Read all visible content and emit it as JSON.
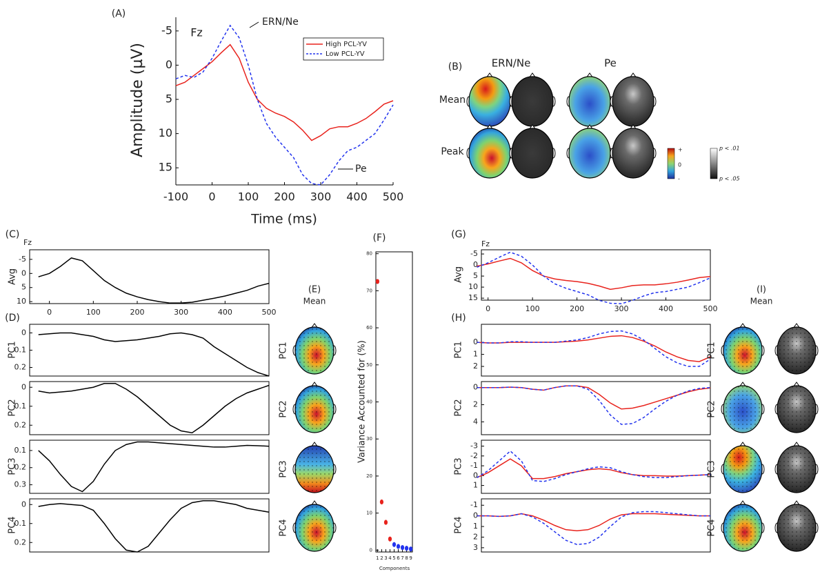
{
  "chart_data": [
    {
      "type": "line",
      "label": "(A)",
      "ylabel": "Amplitude (µV)",
      "xlabel": "Time (ms)",
      "annotations": [
        "Fz",
        "ERN/Ne",
        "Pe"
      ],
      "x": [
        -100,
        -75,
        -50,
        -25,
        0,
        25,
        50,
        75,
        100,
        125,
        150,
        175,
        200,
        225,
        250,
        275,
        300,
        325,
        350,
        375,
        400,
        425,
        450,
        475,
        500
      ],
      "series": [
        {
          "name": "High PCL-YV",
          "color": "#e8221c",
          "dash": false,
          "values": [
            3,
            2.5,
            1.5,
            0.5,
            -0.5,
            -1.8,
            -3,
            -1,
            2.5,
            5,
            6.3,
            7,
            7.5,
            8.3,
            9.5,
            11,
            10.3,
            9.3,
            9,
            9,
            8.5,
            7.8,
            6.8,
            5.7,
            5.2
          ]
        },
        {
          "name": "Low PCL-YV",
          "color": "#2233ee",
          "dash": true,
          "values": [
            2,
            1.5,
            1.8,
            1,
            -1,
            -3.5,
            -5.8,
            -4,
            0,
            5,
            8.5,
            10.5,
            12,
            13.5,
            16,
            17.3,
            17.5,
            16,
            14,
            12.5,
            12,
            11,
            10,
            8,
            5.8
          ]
        }
      ],
      "xlim": [
        -100,
        500
      ],
      "ylim": [
        -7,
        17.5
      ],
      "y_inverted": true,
      "xticks": [
        -100,
        0,
        100,
        200,
        300,
        400,
        500
      ],
      "yticks": [
        -5,
        0,
        5,
        10,
        15
      ],
      "legend": "upper right"
    },
    {
      "type": "topomap",
      "label": "(B)",
      "column_titles": [
        "ERN/Ne",
        "Pe"
      ],
      "row_titles": [
        "Mean",
        "Peak"
      ],
      "colorbar_labels": [
        "+",
        "0",
        "-"
      ],
      "p_labels": [
        "p < .01",
        "p < .05"
      ]
    },
    {
      "type": "line",
      "label": "(C)",
      "ylabel": "Avg",
      "annotations": [
        "Fz"
      ],
      "x": [
        -25,
        0,
        25,
        50,
        75,
        100,
        125,
        150,
        175,
        200,
        225,
        250,
        275,
        300,
        325,
        350,
        375,
        400,
        425,
        450,
        475,
        500
      ],
      "series": [
        {
          "color": "#000000",
          "values": [
            1.2,
            0,
            -2.5,
            -5.5,
            -4.5,
            -1,
            2.5,
            5,
            7,
            8.3,
            9.3,
            10,
            10.5,
            10.5,
            10.2,
            9.5,
            8.8,
            8,
            7,
            6,
            4.5,
            3.5
          ]
        }
      ],
      "xlim": [
        -45,
        500
      ],
      "ylim": [
        -8.4,
        10.7
      ],
      "y_inverted": true,
      "xticks": [
        0,
        100,
        200,
        300,
        400,
        500
      ],
      "yticks": [
        -5,
        0,
        5,
        10
      ]
    },
    {
      "type": "line",
      "label": "(D)",
      "ylabel": "PC1",
      "x": [
        -25,
        0,
        25,
        50,
        75,
        100,
        125,
        150,
        175,
        200,
        225,
        250,
        275,
        300,
        325,
        350,
        375,
        400,
        425,
        450,
        475,
        500
      ],
      "series": [
        {
          "color": "#000000",
          "values": [
            0.01,
            0.005,
            0,
            0,
            0.01,
            0.02,
            0.04,
            0.05,
            0.045,
            0.04,
            0.03,
            0.02,
            0.005,
            0,
            0.01,
            0.03,
            0.08,
            0.12,
            0.16,
            0.2,
            0.23,
            0.25
          ]
        }
      ],
      "xlim": [
        -45,
        500
      ],
      "ylim": [
        -0.05,
        0.25
      ],
      "y_inverted": true,
      "yticks": [
        0,
        0.1,
        0.2
      ]
    },
    {
      "type": "line",
      "ylabel": "PC2",
      "x": [
        -25,
        0,
        25,
        50,
        75,
        100,
        125,
        150,
        175,
        200,
        225,
        250,
        275,
        300,
        325,
        350,
        375,
        400,
        425,
        450,
        475,
        500
      ],
      "series": [
        {
          "color": "#000000",
          "values": [
            0.02,
            0.03,
            0.025,
            0.02,
            0.01,
            0,
            -0.02,
            -0.02,
            0.01,
            0.05,
            0.1,
            0.15,
            0.2,
            0.23,
            0.24,
            0.2,
            0.15,
            0.1,
            0.06,
            0.03,
            0.01,
            -0.01
          ]
        }
      ],
      "xlim": [
        -45,
        500
      ],
      "ylim": [
        -0.03,
        0.25
      ],
      "y_inverted": true,
      "yticks": [
        0,
        0.1,
        0.2
      ]
    },
    {
      "type": "line",
      "ylabel": "PC3",
      "x": [
        -25,
        0,
        25,
        50,
        75,
        100,
        125,
        150,
        175,
        200,
        225,
        250,
        275,
        300,
        325,
        350,
        375,
        400,
        425,
        450,
        475,
        500
      ],
      "series": [
        {
          "color": "#000000",
          "values": [
            0.1,
            0.16,
            0.24,
            0.31,
            0.34,
            0.28,
            0.18,
            0.1,
            0.065,
            0.05,
            0.05,
            0.055,
            0.06,
            0.065,
            0.07,
            0.075,
            0.08,
            0.08,
            0.075,
            0.07,
            0.072,
            0.075
          ]
        }
      ],
      "xlim": [
        -45,
        500
      ],
      "ylim": [
        0.04,
        0.35
      ],
      "y_inverted": true,
      "yticks": [
        0.1,
        0.2,
        0.3
      ]
    },
    {
      "type": "line",
      "ylabel": "PC4",
      "x": [
        -25,
        0,
        25,
        50,
        75,
        100,
        125,
        150,
        175,
        200,
        225,
        250,
        275,
        300,
        325,
        350,
        375,
        400,
        425,
        450,
        475,
        500
      ],
      "series": [
        {
          "color": "#000000",
          "values": [
            0.01,
            0,
            -0.005,
            0,
            0.005,
            0.03,
            0.1,
            0.18,
            0.24,
            0.25,
            0.22,
            0.15,
            0.08,
            0.02,
            -0.01,
            -0.02,
            -0.02,
            -0.01,
            0,
            0.02,
            0.03,
            0.04
          ]
        }
      ],
      "xlim": [
        -45,
        500
      ],
      "ylim": [
        -0.03,
        0.25
      ],
      "y_inverted": true,
      "yticks": [
        0,
        0.1,
        0.2
      ]
    },
    {
      "type": "topomap",
      "label": "(E)",
      "subtitle": "Mean",
      "row_titles": [
        "PC1",
        "PC2",
        "PC3",
        "PC4"
      ]
    },
    {
      "type": "scatter",
      "label": "(F)",
      "ylabel": "Variance Accounted for (%)",
      "xlabel": "Components",
      "x": [
        1,
        2,
        3,
        4,
        5,
        6,
        7,
        8,
        9
      ],
      "values": [
        72.5,
        13,
        7.5,
        3,
        1.5,
        1,
        0.7,
        0.5,
        0.3
      ],
      "colors": [
        "#e8221c",
        "#e8221c",
        "#e8221c",
        "#e8221c",
        "#2233ee",
        "#2233ee",
        "#2233ee",
        "#2233ee",
        "#2233ee"
      ],
      "xlim": [
        0.6,
        9.4
      ],
      "ylim": [
        -0.5,
        80.5
      ],
      "xticks": [
        1,
        2,
        3,
        4,
        5,
        6,
        7,
        8,
        9
      ],
      "yticks": [
        0,
        10,
        20,
        30,
        40,
        50,
        60,
        70,
        80
      ]
    },
    {
      "type": "line",
      "label": "(G)",
      "ylabel": "Avg",
      "annotations": [
        "Fz"
      ],
      "x": [
        -25,
        0,
        25,
        50,
        75,
        100,
        125,
        150,
        175,
        200,
        225,
        250,
        275,
        300,
        325,
        350,
        375,
        400,
        425,
        450,
        475,
        500
      ],
      "series": [
        {
          "color": "#e8221c",
          "dash": false,
          "values": [
            0.5,
            -0.5,
            -1.8,
            -3,
            -1,
            2.5,
            5,
            6.3,
            7,
            7.5,
            8.3,
            9.5,
            11,
            10.3,
            9.3,
            9,
            9,
            8.5,
            7.8,
            6.8,
            5.7,
            5.2
          ]
        },
        {
          "color": "#2233ee",
          "dash": true,
          "values": [
            1,
            -1,
            -3.5,
            -5.8,
            -4,
            0,
            5,
            8.5,
            10.5,
            12,
            13.5,
            16,
            17.3,
            17.5,
            16,
            14,
            12.5,
            12,
            11,
            10,
            8,
            5.8
          ]
        }
      ],
      "xlim": [
        -15,
        500
      ],
      "ylim": [
        -6.9,
        15.9
      ],
      "y_inverted": true,
      "xticks": [
        0,
        100,
        200,
        300,
        400,
        500
      ],
      "yticks": [
        -5,
        0,
        5,
        10,
        15
      ]
    },
    {
      "type": "line",
      "label": "(H)",
      "ylabel": "PC1",
      "x": [
        -25,
        0,
        25,
        50,
        75,
        100,
        125,
        150,
        175,
        200,
        225,
        250,
        275,
        300,
        325,
        350,
        375,
        400,
        425,
        450,
        475,
        500
      ],
      "series": [
        {
          "color": "#e8221c",
          "dash": false,
          "values": [
            0,
            0.05,
            0.05,
            0,
            0,
            0,
            0,
            0,
            -0.05,
            -0.1,
            -0.2,
            -0.35,
            -0.5,
            -0.55,
            -0.4,
            -0.1,
            0.3,
            0.8,
            1.2,
            1.5,
            1.6,
            1.2
          ]
        },
        {
          "color": "#2233ee",
          "dash": true,
          "values": [
            0,
            0.05,
            0.05,
            -0.05,
            -0.05,
            0,
            0,
            0,
            -0.1,
            -0.2,
            -0.4,
            -0.7,
            -0.9,
            -0.95,
            -0.7,
            -0.2,
            0.5,
            1.2,
            1.7,
            2,
            2,
            1.4
          ]
        }
      ],
      "xlim": [
        -15,
        500
      ],
      "ylim": [
        -1.5,
        2.8
      ],
      "y_inverted": true,
      "yticks": [
        0,
        1,
        2
      ]
    },
    {
      "type": "line",
      "ylabel": "PC2",
      "x": [
        -25,
        0,
        25,
        50,
        75,
        100,
        125,
        150,
        175,
        200,
        225,
        250,
        275,
        300,
        325,
        350,
        375,
        400,
        425,
        450,
        475,
        500
      ],
      "series": [
        {
          "color": "#e8221c",
          "dash": false,
          "values": [
            0,
            0,
            0,
            -0.05,
            0,
            0.2,
            0.3,
            0,
            -0.2,
            -0.2,
            0,
            0.8,
            1.8,
            2.5,
            2.4,
            2.1,
            1.7,
            1.3,
            0.9,
            0.5,
            0.2,
            0.05
          ]
        },
        {
          "color": "#2233ee",
          "dash": true,
          "values": [
            0,
            0,
            0,
            -0.05,
            0,
            0.2,
            0.3,
            0,
            -0.2,
            -0.2,
            0.2,
            1.5,
            3.2,
            4.3,
            4.2,
            3.5,
            2.5,
            1.6,
            0.9,
            0.4,
            0.1,
            0
          ]
        }
      ],
      "xlim": [
        -15,
        500
      ],
      "ylim": [
        -0.7,
        5.5
      ],
      "y_inverted": true,
      "yticks": [
        0,
        2,
        4
      ]
    },
    {
      "type": "line",
      "ylabel": "PC3",
      "x": [
        -25,
        0,
        25,
        50,
        75,
        100,
        125,
        150,
        175,
        200,
        225,
        250,
        275,
        300,
        325,
        350,
        375,
        400,
        425,
        450,
        475,
        500
      ],
      "series": [
        {
          "color": "#e8221c",
          "dash": false,
          "values": [
            0.2,
            -0.3,
            -1,
            -1.7,
            -1,
            0.3,
            0.3,
            0.1,
            -0.2,
            -0.4,
            -0.6,
            -0.7,
            -0.6,
            -0.3,
            -0.1,
            0,
            0,
            0.05,
            0.05,
            0,
            -0.05,
            -0.1
          ]
        },
        {
          "color": "#2233ee",
          "dash": true,
          "values": [
            0.2,
            -0.5,
            -1.5,
            -2.5,
            -1.5,
            0.5,
            0.6,
            0.3,
            -0.1,
            -0.4,
            -0.7,
            -0.9,
            -0.8,
            -0.4,
            -0.1,
            0.1,
            0.2,
            0.2,
            0.1,
            0,
            -0.05,
            -0.1
          ]
        }
      ],
      "xlim": [
        -15,
        500
      ],
      "ylim": [
        -3.6,
        1.8
      ],
      "y_inverted": true,
      "yticks": [
        -3,
        -2,
        -1,
        0,
        1
      ]
    },
    {
      "type": "line",
      "ylabel": "PC4",
      "x": [
        -25,
        0,
        25,
        50,
        75,
        100,
        125,
        150,
        175,
        200,
        225,
        250,
        275,
        300,
        325,
        350,
        375,
        400,
        425,
        450,
        475,
        500
      ],
      "series": [
        {
          "color": "#e8221c",
          "dash": false,
          "values": [
            0,
            0,
            0.05,
            0,
            -0.2,
            0,
            0.4,
            0.9,
            1.3,
            1.4,
            1.3,
            0.9,
            0.3,
            -0.1,
            -0.2,
            -0.2,
            -0.2,
            -0.15,
            -0.1,
            -0.05,
            0,
            0
          ]
        },
        {
          "color": "#2233ee",
          "dash": true,
          "values": [
            0,
            0,
            0.05,
            0,
            -0.2,
            0.1,
            0.7,
            1.5,
            2.3,
            2.7,
            2.6,
            2,
            1,
            0.1,
            -0.3,
            -0.4,
            -0.4,
            -0.3,
            -0.2,
            -0.1,
            0,
            0
          ]
        }
      ],
      "xlim": [
        -15,
        500
      ],
      "ylim": [
        -1.6,
        3.4
      ],
      "y_inverted": true,
      "yticks": [
        -1,
        0,
        1,
        2,
        3
      ]
    },
    {
      "type": "topomap",
      "label": "(I)",
      "subtitle": "Mean",
      "row_titles": [
        "PC1",
        "PC2",
        "PC3",
        "PC4"
      ]
    }
  ]
}
